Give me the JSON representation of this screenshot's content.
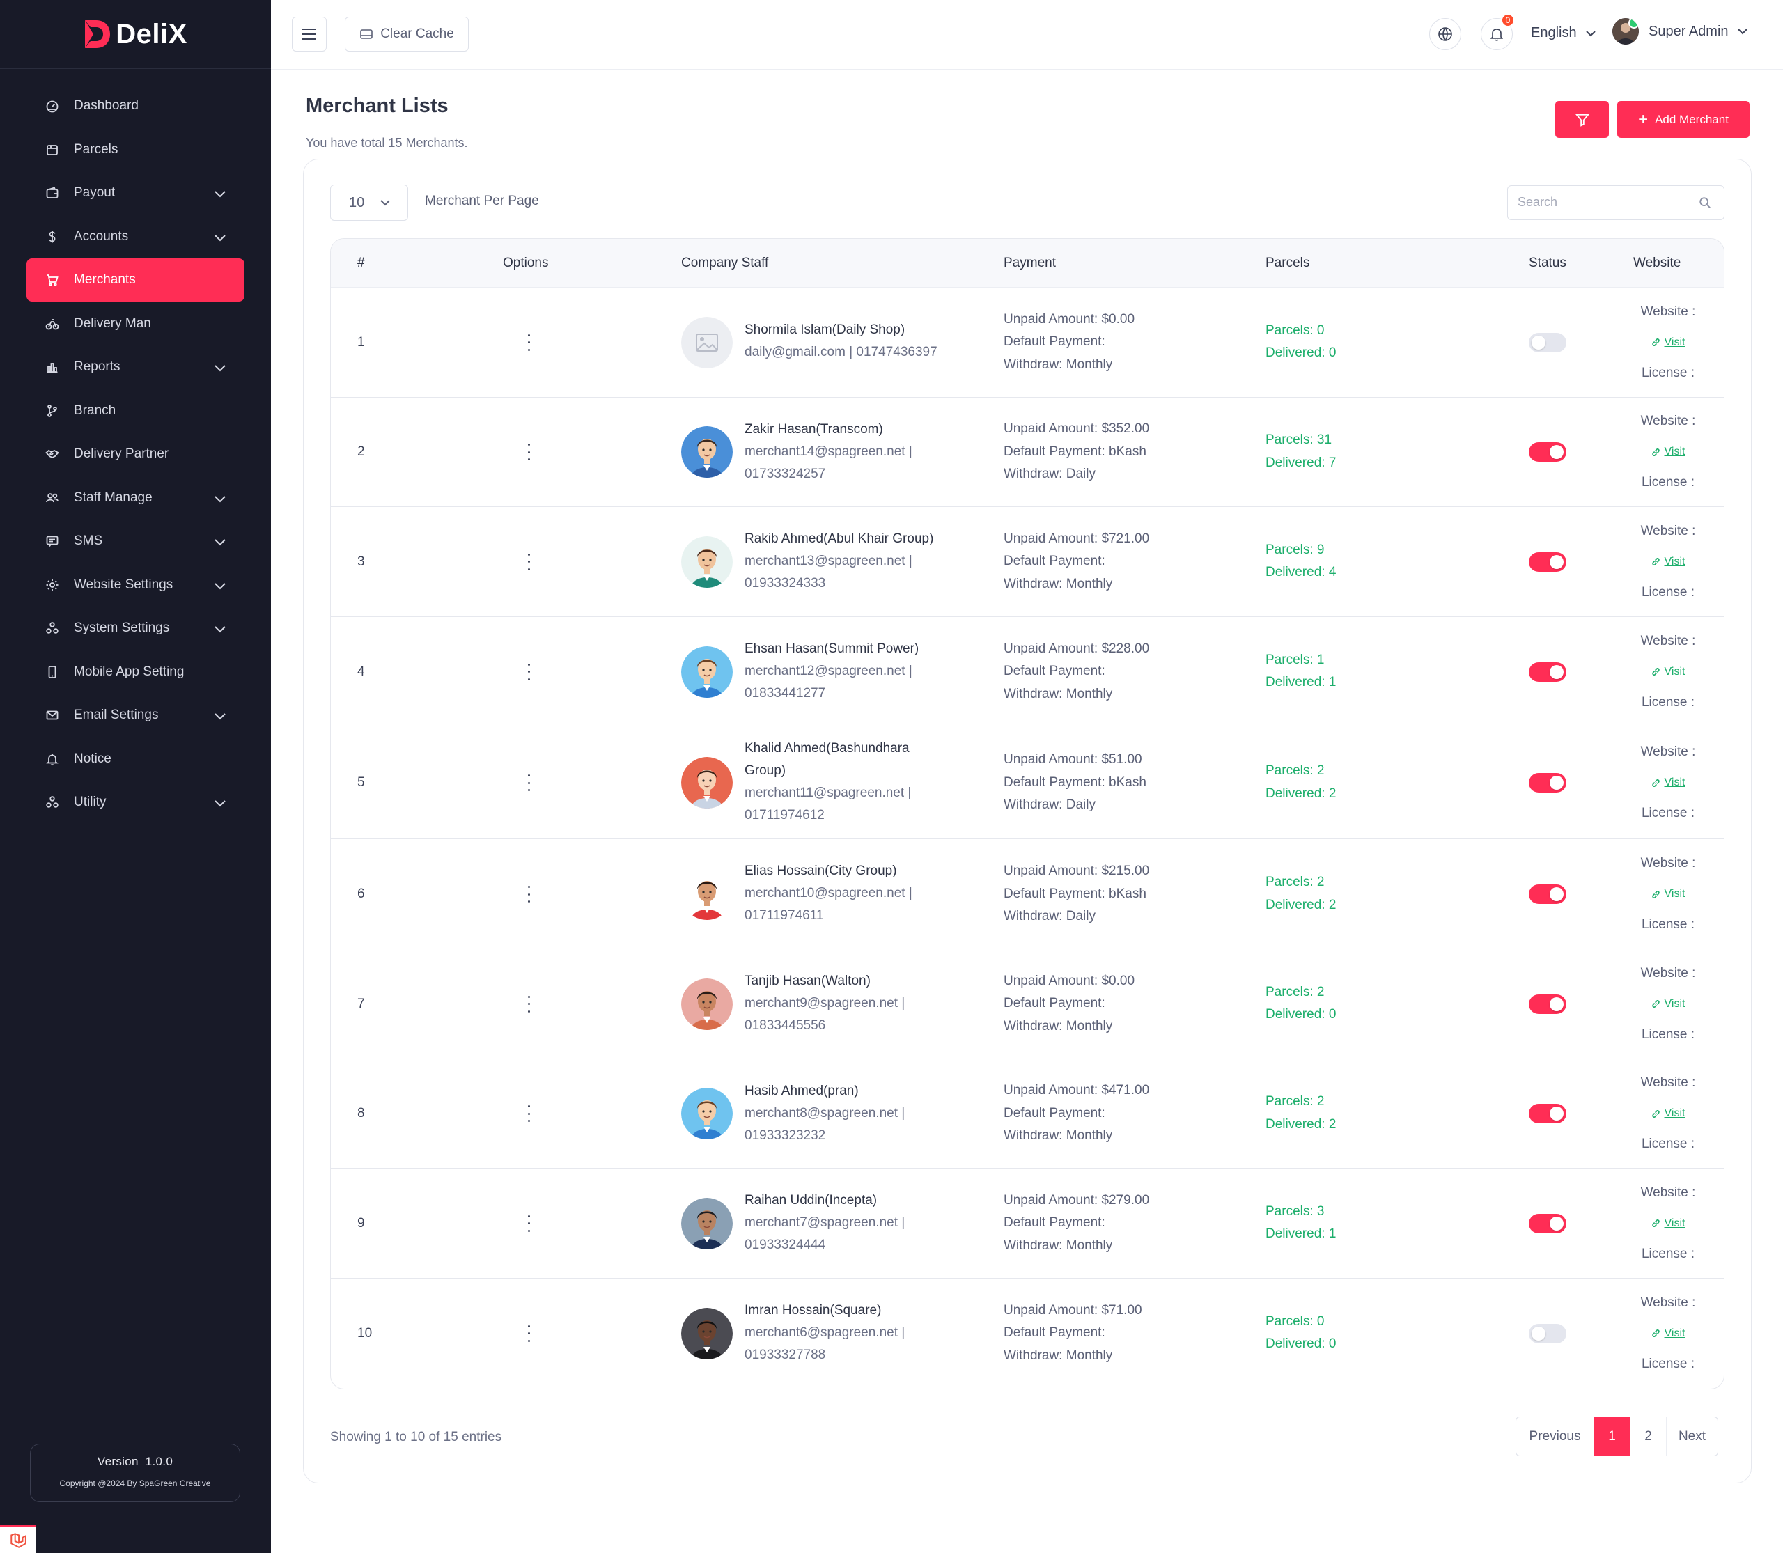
{
  "brand": {
    "name": "DeliX",
    "accent": "#ff2d55",
    "sidebar_bg": "#181a28"
  },
  "sidebar": {
    "items": [
      {
        "label": "Dashboard",
        "icon": "dashboard-icon",
        "expandable": false,
        "active": false
      },
      {
        "label": "Parcels",
        "icon": "parcel-icon",
        "expandable": false,
        "active": false
      },
      {
        "label": "Payout",
        "icon": "wallet-icon",
        "expandable": true,
        "active": false
      },
      {
        "label": "Accounts",
        "icon": "dollar-icon",
        "expandable": true,
        "active": false
      },
      {
        "label": "Merchants",
        "icon": "cart-icon",
        "expandable": false,
        "active": true
      },
      {
        "label": "Delivery Man",
        "icon": "bike-icon",
        "expandable": false,
        "active": false
      },
      {
        "label": "Reports",
        "icon": "bar-chart-icon",
        "expandable": true,
        "active": false
      },
      {
        "label": "Branch",
        "icon": "branch-icon",
        "expandable": false,
        "active": false
      },
      {
        "label": "Delivery Partner",
        "icon": "handshake-icon",
        "expandable": false,
        "active": false
      },
      {
        "label": "Staff Manage",
        "icon": "users-icon",
        "expandable": true,
        "active": false
      },
      {
        "label": "SMS",
        "icon": "message-icon",
        "expandable": true,
        "active": false
      },
      {
        "label": "Website Settings",
        "icon": "gear-icon",
        "expandable": true,
        "active": false
      },
      {
        "label": "System Settings",
        "icon": "nodes-icon",
        "expandable": true,
        "active": false
      },
      {
        "label": "Mobile App Setting",
        "icon": "mobile-icon",
        "expandable": false,
        "active": false
      },
      {
        "label": "Email Settings",
        "icon": "mail-icon",
        "expandable": true,
        "active": false
      },
      {
        "label": "Notice",
        "icon": "bell-icon",
        "expandable": false,
        "active": false
      },
      {
        "label": "Utility",
        "icon": "nodes-icon",
        "expandable": true,
        "active": false
      }
    ],
    "version_label": "Version",
    "version": "1.0.0",
    "copyright": "Copyright @2024 By SpaGreen Creative"
  },
  "header": {
    "clear_cache": "Clear Cache",
    "notification_count": "0",
    "language": "English",
    "user_name": "Super Admin"
  },
  "page": {
    "title": "Merchant Lists",
    "subtitle": "You have total 15 Merchants.",
    "add_button": "Add Merchant",
    "per_page_value": "10",
    "per_page_label": "Merchant Per Page",
    "search_placeholder": "Search"
  },
  "table": {
    "columns": [
      "#",
      "Options",
      "Company Staff",
      "Payment",
      "Parcels",
      "Status",
      "Website"
    ],
    "rows": [
      {
        "num": "1",
        "name": "Shormila Islam(Daily Shop)",
        "contact": "daily@gmail.com | 01747436397",
        "unpaid": "Unpaid Amount: $0.00",
        "default_payment": "Default Payment:",
        "withdraw": "Withdraw: Monthly",
        "parcels": "Parcels: 0",
        "delivered": "Delivered: 0",
        "status_on": false,
        "avatar": "placeholder"
      },
      {
        "num": "2",
        "name": "Zakir Hasan(Transcom)",
        "contact": "merchant14@spagreen.net | 01733324257",
        "unpaid": "Unpaid Amount: $352.00",
        "default_payment": "Default Payment: bKash",
        "withdraw": "Withdraw: Daily",
        "parcels": "Parcels: 31",
        "delivered": "Delivered: 7",
        "status_on": true,
        "avatar": "blue"
      },
      {
        "num": "3",
        "name": "Rakib Ahmed(Abul Khair Group)",
        "contact": "merchant13@spagreen.net | 01933324333",
        "unpaid": "Unpaid Amount: $721.00",
        "default_payment": "Default Payment:",
        "withdraw": "Withdraw: Monthly",
        "parcels": "Parcels: 9",
        "delivered": "Delivered: 4",
        "status_on": true,
        "avatar": "teal"
      },
      {
        "num": "4",
        "name": "Ehsan Hasan(Summit Power)",
        "contact": "merchant12@spagreen.net | 01833441277",
        "unpaid": "Unpaid Amount: $228.00",
        "default_payment": "Default Payment:",
        "withdraw": "Withdraw: Monthly",
        "parcels": "Parcels: 1",
        "delivered": "Delivered: 1",
        "status_on": true,
        "avatar": "sky"
      },
      {
        "num": "5",
        "name": "Khalid Ahmed(Bashundhara Group)",
        "contact": "merchant11@spagreen.net | 01711974612",
        "unpaid": "Unpaid Amount: $51.00",
        "default_payment": "Default Payment: bKash",
        "withdraw": "Withdraw: Daily",
        "parcels": "Parcels: 2",
        "delivered": "Delivered: 2",
        "status_on": true,
        "avatar": "coral"
      },
      {
        "num": "6",
        "name": "Elias Hossain(City Group)",
        "contact": "merchant10@spagreen.net | 01711974611",
        "unpaid": "Unpaid Amount: $215.00",
        "default_payment": "Default Payment: bKash",
        "withdraw": "Withdraw: Daily",
        "parcels": "Parcels: 2",
        "delivered": "Delivered: 2",
        "status_on": true,
        "avatar": "white"
      },
      {
        "num": "7",
        "name": "Tanjib Hasan(Walton)",
        "contact": "merchant9@spagreen.net | 01833445556",
        "unpaid": "Unpaid Amount: $0.00",
        "default_payment": "Default Payment:",
        "withdraw": "Withdraw: Monthly",
        "parcels": "Parcels: 2",
        "delivered": "Delivered: 0",
        "status_on": true,
        "avatar": "rose"
      },
      {
        "num": "8",
        "name": "Hasib Ahmed(pran)",
        "contact": "merchant8@spagreen.net | 01933323232",
        "unpaid": "Unpaid Amount: $471.00",
        "default_payment": "Default Payment:",
        "withdraw": "Withdraw: Monthly",
        "parcels": "Parcels: 2",
        "delivered": "Delivered: 2",
        "status_on": true,
        "avatar": "sky"
      },
      {
        "num": "9",
        "name": "Raihan Uddin(Incepta)",
        "contact": "merchant7@spagreen.net | 01933324444",
        "unpaid": "Unpaid Amount: $279.00",
        "default_payment": "Default Payment:",
        "withdraw": "Withdraw: Monthly",
        "parcels": "Parcels: 3",
        "delivered": "Delivered: 1",
        "status_on": true,
        "avatar": "photo"
      },
      {
        "num": "10",
        "name": "Imran Hossain(Square)",
        "contact": "merchant6@spagreen.net | 01933327788",
        "unpaid": "Unpaid Amount: $71.00",
        "default_payment": "Default Payment:",
        "withdraw": "Withdraw: Monthly",
        "parcels": "Parcels: 0",
        "delivered": "Delivered: 0",
        "status_on": false,
        "avatar": "dark"
      }
    ],
    "website_label": "Website :",
    "visit_label": "Visit",
    "license_label": "License :"
  },
  "footer": {
    "showing": "Showing 1 to 10 of 15 entries",
    "previous": "Previous",
    "pages": [
      "1",
      "2"
    ],
    "current_page": "1",
    "next": "Next"
  }
}
